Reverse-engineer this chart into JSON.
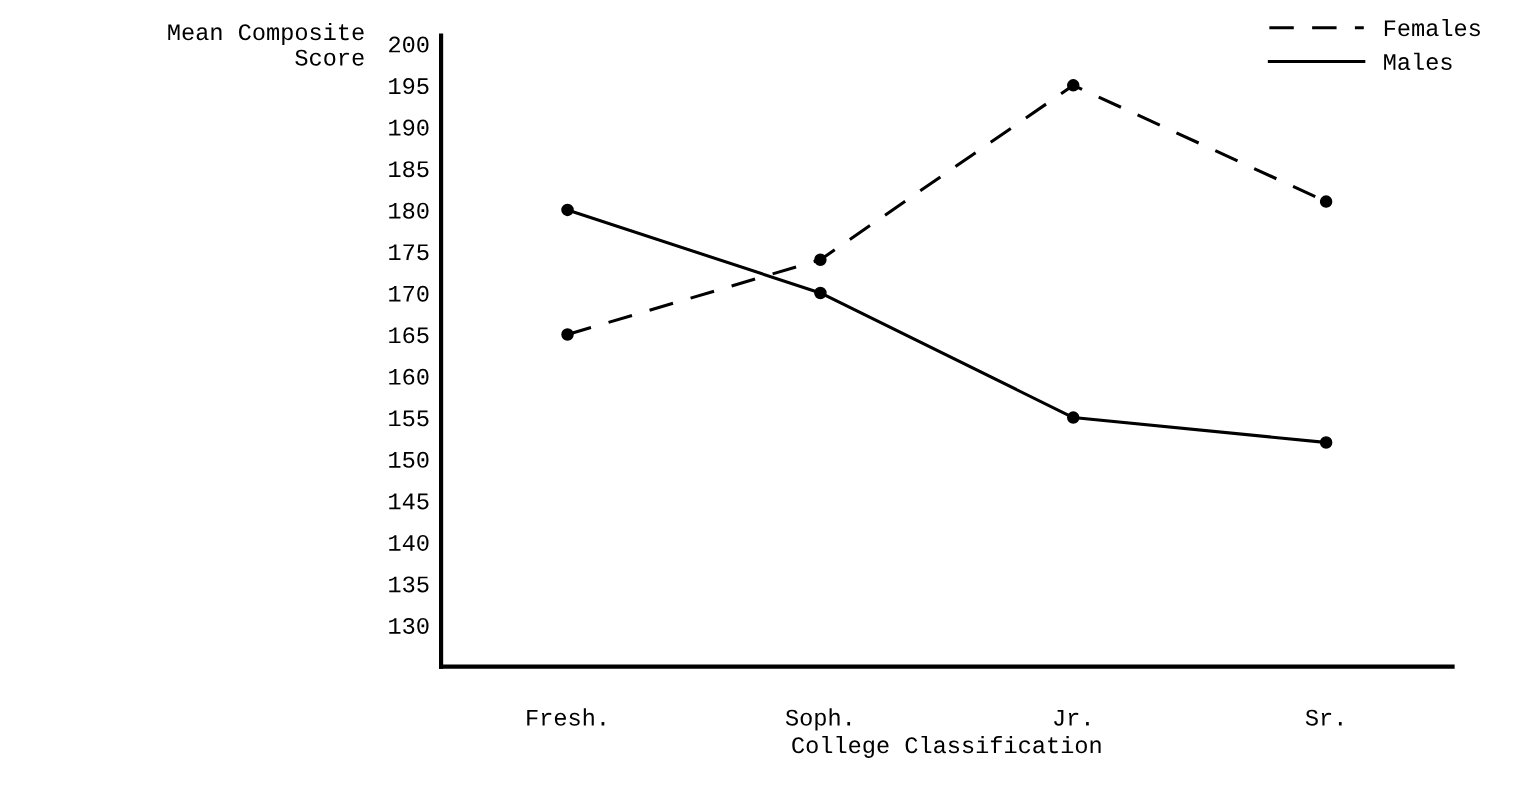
{
  "chart_data": {
    "type": "line",
    "xlabel": "College Classification",
    "ylabel": "Mean Composite\nScore",
    "categories": [
      "Fresh.",
      "Soph.",
      "Jr.",
      "Sr."
    ],
    "series": [
      {
        "name": "Females",
        "color": "#000000",
        "line_style": "dashed",
        "values": [
          165,
          174,
          195,
          181
        ]
      },
      {
        "name": "Males",
        "color": "#000000",
        "line_style": "solid",
        "values": [
          180,
          170,
          155,
          152
        ]
      }
    ],
    "ylim": [
      125,
      201
    ],
    "yticks": [
      130,
      135,
      140,
      145,
      150,
      155,
      160,
      165,
      170,
      175,
      180,
      185,
      190,
      195,
      200
    ],
    "marker": "circle",
    "legend": "top right",
    "grid": false
  }
}
